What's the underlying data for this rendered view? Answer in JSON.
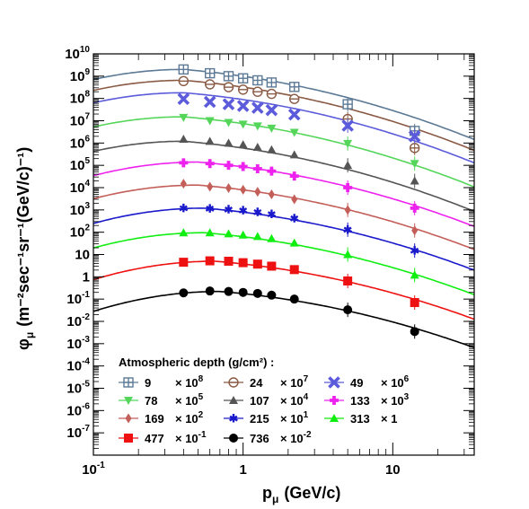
{
  "chart_data": {
    "type": "scatter",
    "x_axis": {
      "label_main": "p",
      "label_sub": "μ",
      "label_unit": "(GeV/c)",
      "scale": "log",
      "range": [
        0.1,
        35
      ],
      "major_ticks": [
        {
          "value": 0.1,
          "base": "10",
          "exp": "-1"
        },
        {
          "value": 1,
          "base": "1",
          "exp": ""
        },
        {
          "value": 10,
          "base": "10",
          "exp": ""
        }
      ]
    },
    "y_axis": {
      "label_main": "φ",
      "label_sub": "μ",
      "label_unit": "(m⁻²sec⁻¹sr⁻¹(GeV/c)⁻¹)",
      "scale": "log",
      "range": [
        1e-08,
        10000000000.0
      ],
      "major_ticks": [
        {
          "value": 10000000000.0,
          "base": "10",
          "exp": "10"
        },
        {
          "value": 1000000000.0,
          "base": "10",
          "exp": "9"
        },
        {
          "value": 100000000.0,
          "base": "10",
          "exp": "8"
        },
        {
          "value": 10000000.0,
          "base": "10",
          "exp": "7"
        },
        {
          "value": 1000000.0,
          "base": "10",
          "exp": "6"
        },
        {
          "value": 100000.0,
          "base": "10",
          "exp": "5"
        },
        {
          "value": 10000.0,
          "base": "10",
          "exp": "4"
        },
        {
          "value": 1000.0,
          "base": "10",
          "exp": "3"
        },
        {
          "value": 100.0,
          "base": "10",
          "exp": "2"
        },
        {
          "value": 10,
          "base": "10",
          "exp": ""
        },
        {
          "value": 1,
          "base": "1",
          "exp": ""
        },
        {
          "value": 0.1,
          "base": "10",
          "exp": "-1"
        },
        {
          "value": 0.01,
          "base": "10",
          "exp": "-2"
        },
        {
          "value": 0.001,
          "base": "10",
          "exp": "-3"
        },
        {
          "value": 0.0001,
          "base": "10",
          "exp": "-4"
        },
        {
          "value": 1e-05,
          "base": "10",
          "exp": "-5"
        },
        {
          "value": 1e-06,
          "base": "10",
          "exp": "-6"
        },
        {
          "value": 1e-07,
          "base": "10",
          "exp": "-7"
        }
      ]
    },
    "x_points": [
      0.4,
      0.6,
      0.8,
      1.0,
      1.25,
      1.55,
      2.2,
      5.0,
      14.0
    ],
    "legend": {
      "title": "Atmospheric depth (g/cm²) :",
      "placement": "bottom-left"
    },
    "series": [
      {
        "depth": "9",
        "scale_base": "× 10",
        "scale_exp": "8",
        "marker": "open-square-cross",
        "color": "#5c7a96",
        "values": [
          2000000000.0,
          1350000000.0,
          1000000000.0,
          800000000.0,
          650000000.0,
          520000000.0,
          330000000.0,
          55000000.0,
          3500000.0
        ],
        "curve_peak": {
          "x": 0.4,
          "y": 2000000000.0
        }
      },
      {
        "depth": "24",
        "scale_base": "× 10",
        "scale_exp": "7",
        "marker": "open-circle",
        "color": "#8a5a44",
        "values": [
          600000000.0,
          430000000.0,
          320000000.0,
          250000000.0,
          200000000.0,
          160000000.0,
          95000000.0,
          12000000.0,
          600000.0
        ],
        "curve_peak": {
          "x": 0.4,
          "y": 650000000.0
        }
      },
      {
        "depth": "49",
        "scale_base": "× 10",
        "scale_exp": "6",
        "marker": "x-cross",
        "color": "#5b5bdb",
        "values": [
          95000000.0,
          70000000.0,
          55000000.0,
          46000000.0,
          38000000.0,
          30000000.0,
          19000000.0,
          6000000.0,
          2000000.0
        ],
        "curve_peak": {
          "x": 0.4,
          "y": 180000000.0
        }
      },
      {
        "depth": "78",
        "scale_base": "× 10",
        "scale_exp": "5",
        "marker": "triangle-down",
        "color": "#55d65b",
        "values": [
          14000000.0,
          10000000.0,
          8300000.0,
          7000000.0,
          5800000.0,
          4600000.0,
          3000000.0,
          950000.0,
          120000.0
        ],
        "curve_peak": {
          "x": 0.4,
          "y": 15000000.0
        }
      },
      {
        "depth": "107",
        "scale_base": "× 10",
        "scale_exp": "4",
        "marker": "triangle-up",
        "color": "#555555",
        "values": [
          1500000.0,
          1200000.0,
          1000000.0,
          850000.0,
          650000.0,
          500000.0,
          300000.0,
          100000.0,
          20000.0
        ],
        "curve_peak": {
          "x": 0.4,
          "y": 1200000.0
        }
      },
      {
        "depth": "133",
        "scale_base": "× 10",
        "scale_exp": "3",
        "marker": "plus",
        "color": "#ee22ee",
        "values": [
          130000.0,
          120000.0,
          100000.0,
          88000.0,
          70000.0,
          55000.0,
          33000.0,
          10000.0,
          1200.0
        ],
        "curve_peak": {
          "x": 0.5,
          "y": 140000.0
        }
      },
      {
        "depth": "169",
        "scale_base": "× 10",
        "scale_exp": "2",
        "marker": "diamond",
        "color": "#c45e59",
        "values": [
          15000.0,
          11000.0,
          9500.0,
          8000.0,
          6500.0,
          5000.0,
          3000.0,
          1000.0,
          120.0
        ],
        "curve_peak": {
          "x": 0.5,
          "y": 13000.0
        }
      },
      {
        "depth": "215",
        "scale_base": "× 10",
        "scale_exp": "1",
        "marker": "star",
        "color": "#1a1acc",
        "values": [
          1200.0,
          1150.0,
          1050.0,
          950.0,
          800.0,
          650.0,
          420.0,
          130.0,
          15.0
        ],
        "curve_peak": {
          "x": 0.55,
          "y": 1200.0
        }
      },
      {
        "depth": "313",
        "scale_base": "× 1",
        "scale_exp": "",
        "marker": "triangle-up",
        "color": "#11ee11",
        "values": [
          95,
          95,
          85,
          75,
          65,
          52,
          33,
          10,
          1.2
        ],
        "curve_peak": {
          "x": 0.55,
          "y": 95
        }
      },
      {
        "depth": "477",
        "scale_base": "× 10",
        "scale_exp": "-1",
        "marker": "square",
        "color": "#ee1111",
        "values": [
          4.5,
          5.2,
          5.0,
          4.3,
          3.7,
          3.0,
          2.1,
          0.65,
          0.07
        ],
        "curve_peak": {
          "x": 0.65,
          "y": 5.0
        }
      },
      {
        "depth": "736",
        "scale_base": "× 10",
        "scale_exp": "-2",
        "marker": "circle",
        "color": "#000000",
        "values": [
          0.19,
          0.23,
          0.22,
          0.2,
          0.18,
          0.15,
          0.1,
          0.033,
          0.0035
        ],
        "curve_peak": {
          "x": 0.7,
          "y": 0.22
        }
      }
    ]
  }
}
